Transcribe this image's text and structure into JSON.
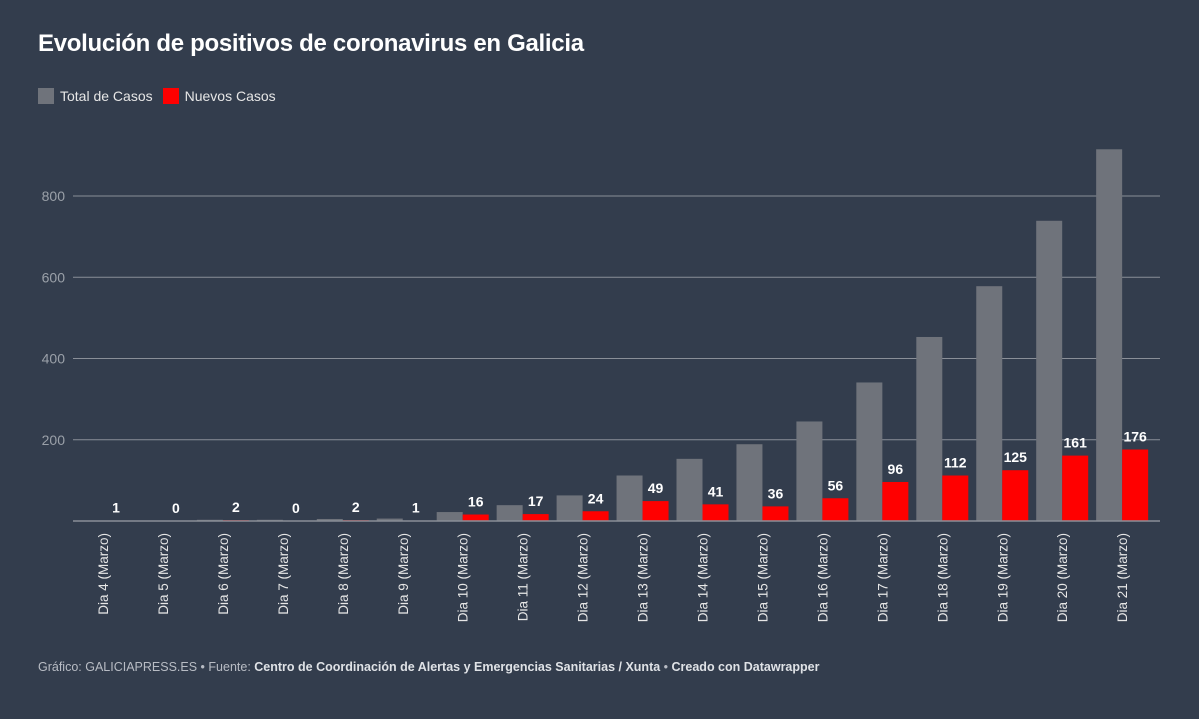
{
  "chart_data": {
    "type": "bar",
    "title": "Evolución de positivos de coronavirus en Galicia",
    "categories": [
      "Dia 4 (Marzo)",
      "Dia 5 (Marzo)",
      "Dia 6 (Marzo)",
      "Dia 7 (Marzo)",
      "Dia 8 (Marzo)",
      "Dia 9 (Marzo)",
      "Dia 10 (Marzo)",
      "Dia 11 (Marzo)",
      "Dia 12 (Marzo)",
      "Dia 13 (Marzo)",
      "Dia 14 (Marzo)",
      "Dia 15 (Marzo)",
      "Dia 16 (Marzo)",
      "Dia 17 (Marzo)",
      "Dia 18 (Marzo)",
      "Dia 19 (Marzo)",
      "Dia 20 (Marzo)",
      "Dia 21 (Marzo)"
    ],
    "series": [
      {
        "name": "Total de Casos",
        "color": "#6f737b",
        "values": [
          1,
          1,
          3,
          3,
          5,
          6,
          22,
          39,
          63,
          112,
          153,
          189,
          245,
          341,
          453,
          578,
          739,
          915
        ]
      },
      {
        "name": "Nuevos Casos",
        "color": "#ff0000",
        "values": [
          1,
          0,
          2,
          0,
          2,
          1,
          16,
          17,
          24,
          49,
          41,
          36,
          56,
          96,
          112,
          125,
          161,
          176
        ],
        "data_labels": true
      }
    ],
    "yticks": [
      200,
      400,
      600,
      800
    ],
    "ylim": [
      0,
      920
    ],
    "grid": true,
    "legend": "top-left",
    "xlabel": "",
    "ylabel": ""
  },
  "footer": {
    "prefix": "Gráfico: GALICIAPRESS.ES • Fuente: ",
    "source": "Centro de Coordinación de Alertas y Emergencias Sanitarias / Xunta",
    "sep": " • ",
    "credit": "Creado con Datawrapper"
  }
}
